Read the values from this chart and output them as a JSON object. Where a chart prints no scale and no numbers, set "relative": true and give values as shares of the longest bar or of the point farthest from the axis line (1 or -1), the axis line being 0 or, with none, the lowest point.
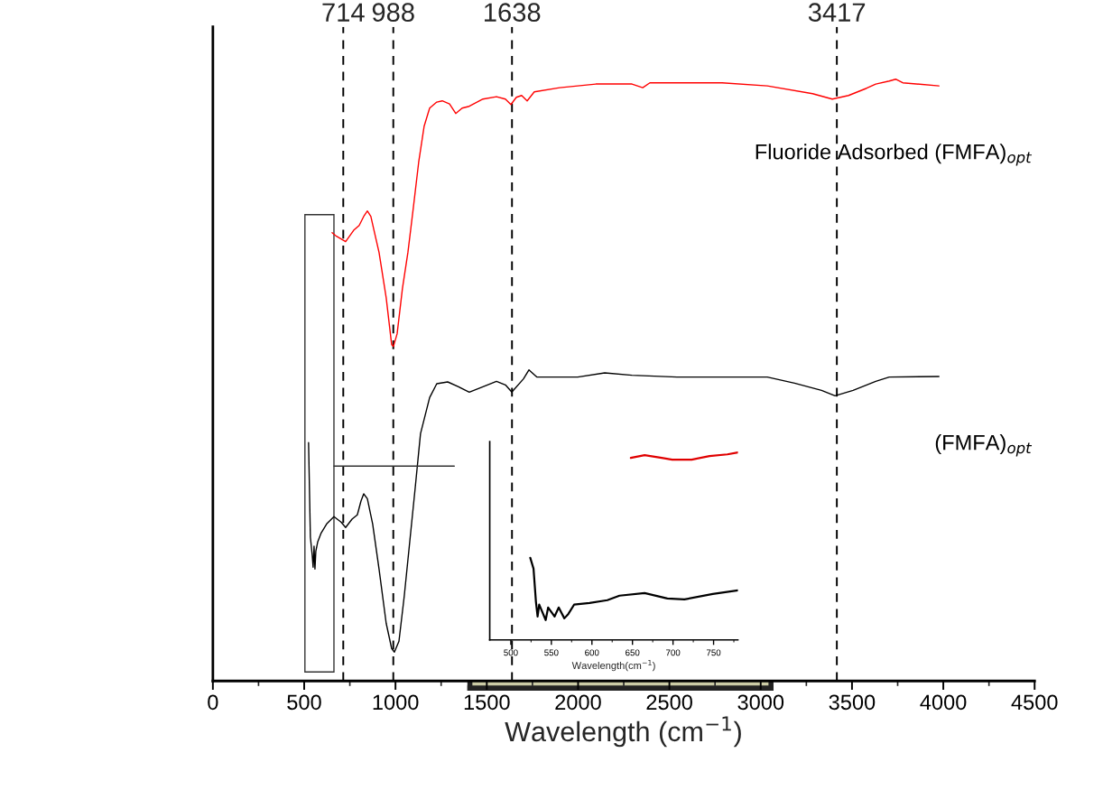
{
  "chart_data": [
    {
      "type": "line",
      "relative": true,
      "xlabel": "Wavelength (cm$^{−1}$)",
      "xlim": [
        0,
        4500
      ],
      "xticks": [
        0,
        {
          "value": 250,
          "label": null
        },
        500,
        {
          "value": 750,
          "label": null
        },
        1000,
        {
          "value": 1250,
          "label": null
        },
        1500,
        {
          "value": 1750,
          "label": null
        },
        2000,
        {
          "value": 2250,
          "label": null
        },
        2500,
        {
          "value": 2750,
          "label": null
        },
        3000,
        {
          "value": 3250,
          "label": null
        },
        3500,
        {
          "value": 3750,
          "label": null
        },
        4000,
        {
          "value": 4250,
          "label": null
        },
        4500
      ],
      "tick_labels": "x",
      "grid": false,
      "legend": false,
      "line_style": "solid",
      "marker": "none",
      "ref_lines": [
        {
          "axis": "x",
          "value": 714,
          "label": "714",
          "line_style": "dashed",
          "color": "#000000"
        },
        {
          "axis": "x",
          "value": 988,
          "label": "988",
          "line_style": "dashed",
          "color": "#000000"
        },
        {
          "axis": "x",
          "value": 1638,
          "label": "1638",
          "line_style": "dashed",
          "color": "#000000"
        },
        {
          "axis": "x",
          "value": 3417,
          "label": "3417",
          "line_style": "dashed",
          "color": "#000000"
        }
      ],
      "series": [
        {
          "name": "Fluoride Adsorbed (FMFA)$_{opt}$",
          "color": "#ff0000",
          "x": [
            653,
            677,
            727,
            771,
            801,
            826,
            846,
            865,
            910,
            949,
            979,
            989,
            1009,
            1038,
            1068,
            1098,
            1127,
            1157,
            1187,
            1226,
            1256,
            1296,
            1330,
            1365,
            1404,
            1479,
            1553,
            1602,
            1632,
            1662,
            1691,
            1721,
            1760,
            1899,
            2097,
            2295,
            2354,
            2393,
            2789,
            3036,
            3284,
            3392,
            3481,
            3580,
            3630,
            3704,
            3739,
            3778,
            3976
          ],
          "values": [
            0.745,
            0.739,
            0.73,
            0.749,
            0.757,
            0.772,
            0.781,
            0.772,
            0.712,
            0.637,
            0.559,
            0.556,
            0.577,
            0.652,
            0.712,
            0.787,
            0.862,
            0.922,
            0.952,
            0.962,
            0.964,
            0.959,
            0.943,
            0.952,
            0.955,
            0.967,
            0.971,
            0.967,
            0.958,
            0.97,
            0.973,
            0.964,
            0.979,
            0.986,
            0.992,
            0.992,
            0.986,
            0.994,
            0.994,
            0.989,
            0.976,
            0.967,
            0.973,
            0.985,
            0.992,
            0.997,
            1,
            0.994,
            0.989
          ]
        },
        {
          "name": "(FMFA)$_{opt}$",
          "color": "#000000",
          "x": [
            524,
            534,
            544,
            549,
            554,
            559,
            564,
            574,
            593,
            623,
            663,
            702,
            727,
            762,
            791,
            811,
            826,
            846,
            875,
            910,
            949,
            979,
            994,
            1019,
            1048,
            1078,
            1108,
            1137,
            1187,
            1226,
            1286,
            1345,
            1404,
            1479,
            1553,
            1602,
            1637,
            1701,
            1731,
            1775,
            1998,
            2146,
            2295,
            2542,
            3036,
            3185,
            3333,
            3407,
            3506,
            3630,
            3704,
            3976
          ],
          "values": [
            0.396,
            0.239,
            0.209,
            0.189,
            0.224,
            0.186,
            0.216,
            0.231,
            0.246,
            0.261,
            0.273,
            0.264,
            0.255,
            0.269,
            0.276,
            0.299,
            0.311,
            0.303,
            0.261,
            0.186,
            0.096,
            0.054,
            0.048,
            0.066,
            0.141,
            0.231,
            0.321,
            0.411,
            0.471,
            0.494,
            0.497,
            0.489,
            0.48,
            0.489,
            0.498,
            0.492,
            0.48,
            0.502,
            0.517,
            0.505,
            0.505,
            0.512,
            0.508,
            0.505,
            0.505,
            0.495,
            0.483,
            0.474,
            0.483,
            0.498,
            0.505,
            0.506
          ]
        }
      ]
    },
    {
      "type": "line",
      "relative": true,
      "xlabel": "Wavelength(cm$^{−1}$)",
      "xlim": [
        474,
        780
      ],
      "xticks": [
        500,
        {
          "value": 525,
          "label": null
        },
        550,
        {
          "value": 575,
          "label": null
        },
        600,
        {
          "value": 625,
          "label": null
        },
        650,
        {
          "value": 675,
          "label": null
        },
        700,
        {
          "value": 725,
          "label": null
        },
        750,
        {
          "value": 775,
          "label": null
        }
      ],
      "tick_labels": "x",
      "grid": false,
      "legend": false,
      "line_style": "solid",
      "marker": "none",
      "series": [
        {
          "color": "#e00000",
          "x": [
            648,
            665,
            686,
            699,
            723,
            745,
            767,
            780
          ],
          "values": [
            0.971,
            0.986,
            0.971,
            0.962,
            0.962,
            0.981,
            0.99,
            1
          ]
        },
        {
          "color": "#000000",
          "x": [
            524,
            528,
            531,
            533,
            535,
            537,
            543,
            546,
            554,
            559,
            566,
            571,
            578,
            597,
            619,
            634,
            665,
            693,
            714,
            749,
            780
          ],
          "values": [
            0.438,
            0.38,
            0.202,
            0.125,
            0.188,
            0.168,
            0.106,
            0.173,
            0.125,
            0.173,
            0.115,
            0.139,
            0.188,
            0.197,
            0.212,
            0.236,
            0.25,
            0.221,
            0.216,
            0.245,
            0.264
          ]
        }
      ]
    }
  ]
}
